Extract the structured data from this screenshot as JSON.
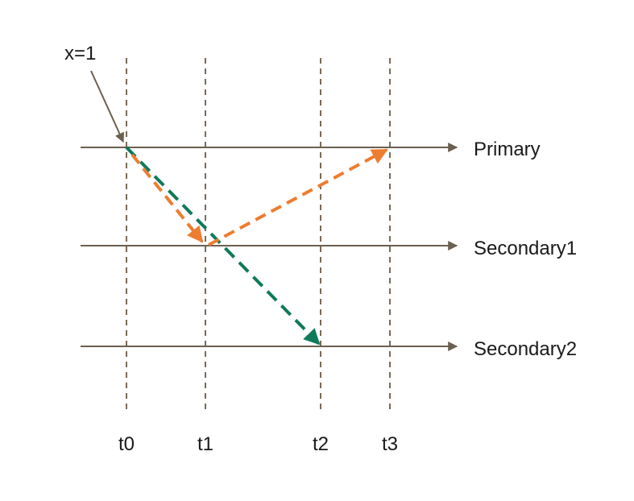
{
  "annotation": {
    "text": "x=1"
  },
  "lanes": [
    {
      "id": "primary",
      "label": "Primary"
    },
    {
      "id": "secondary1",
      "label": "Secondary1"
    },
    {
      "id": "secondary2",
      "label": "Secondary2"
    }
  ],
  "times": [
    {
      "id": "t0",
      "label": "t0"
    },
    {
      "id": "t1",
      "label": "t1"
    },
    {
      "id": "t2",
      "label": "t2"
    },
    {
      "id": "t3",
      "label": "t3"
    }
  ],
  "messages": [
    {
      "from_lane": "primary",
      "from_time": "t0",
      "to_lane": "secondary1",
      "to_time": "t1",
      "color": "#ed7d31"
    },
    {
      "from_lane": "secondary1",
      "from_time": "t1",
      "to_lane": "primary",
      "to_time": "t3",
      "color": "#ed7d31"
    },
    {
      "from_lane": "primary",
      "from_time": "t0",
      "to_lane": "secondary2",
      "to_time": "t2",
      "color": "#0e7a5a"
    }
  ],
  "colors": {
    "lane_line": "#6b5f4f",
    "time_line": "#7a6a58",
    "orange": "#ed7d31",
    "green": "#0e7a5a"
  }
}
